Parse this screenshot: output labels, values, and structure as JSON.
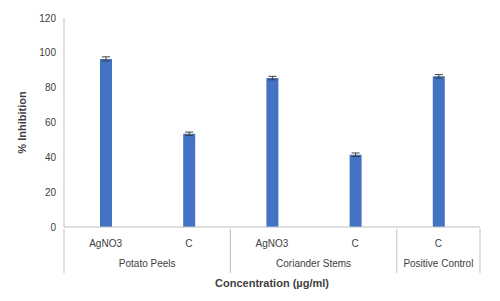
{
  "chart_data": {
    "type": "bar",
    "categories": [
      "AgNO3",
      "C",
      "AgNO3",
      "C",
      "C"
    ],
    "group_labels": [
      "Potato Peels",
      "Potato Peels",
      "Coriander Stems",
      "Coriander Stems",
      "Positive Control"
    ],
    "values": [
      96.5,
      53.5,
      85.5,
      41.5,
      86.5
    ],
    "errors": [
      1.2,
      1.0,
      1.0,
      1.0,
      1.0
    ],
    "color": "#4472c4",
    "xlabel": "Concentration (µg/ml)",
    "ylabel": "% Inhibition",
    "ylim": [
      0,
      120
    ],
    "yticks": [
      0,
      20,
      40,
      60,
      80,
      100,
      120
    ],
    "grid": false
  }
}
